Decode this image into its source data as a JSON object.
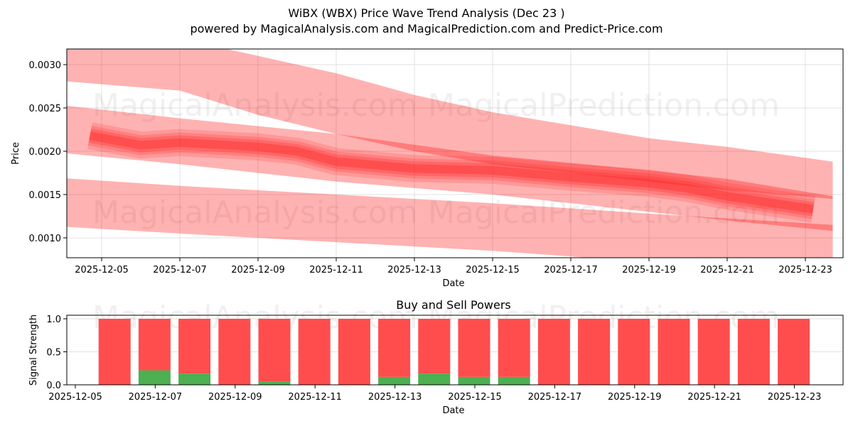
{
  "header": {
    "title": "WiBX (WBX) Price Wave Trend Analysis (Dec 23 )",
    "subtitle": "powered by MagicalAnalysis.com and MagicalPrediction.com and Predict-Price.com"
  },
  "watermarks": [
    "MagicalAnalysis.com",
    "MagicalPrediction.com"
  ],
  "colors": {
    "band_light": "#ff0000",
    "buy": "#4caf50",
    "sell": "#ff4d4d",
    "grid": "#e0e0e0"
  },
  "chart_data": [
    {
      "type": "area",
      "title": "WiBX (WBX) Price Wave Trend Analysis (Dec 23 )",
      "xlabel": "Date",
      "ylabel": "Price",
      "x_ticks": [
        "2025-12-05",
        "2025-12-07",
        "2025-12-09",
        "2025-12-11",
        "2025-12-13",
        "2025-12-15",
        "2025-12-17",
        "2025-12-19",
        "2025-12-21",
        "2025-12-23"
      ],
      "y_ticks": [
        "0.0010",
        "0.0015",
        "0.0020",
        "0.0025",
        "0.0030"
      ],
      "ylim": [
        0.00077,
        0.00318
      ],
      "grid": true,
      "series": [
        {
          "name": "upper-band",
          "x": [
            "2025-12-04",
            "2025-12-07",
            "2025-12-09",
            "2025-12-11",
            "2025-12-13",
            "2025-12-15",
            "2025-12-19",
            "2025-12-21",
            "2025-12-23.7"
          ],
          "upper": [
            0.0033,
            0.0033,
            0.0031,
            0.0029,
            0.00265,
            0.00245,
            0.00215,
            0.00205,
            0.00188
          ],
          "lower": [
            0.00281,
            0.0027,
            0.00242,
            0.0022,
            0.002,
            0.00185,
            0.00165,
            0.00155,
            0.00145
          ]
        },
        {
          "name": "middle-band",
          "x": [
            "2025-12-04",
            "2025-12-07",
            "2025-12-11",
            "2025-12-15",
            "2025-12-19",
            "2025-12-21",
            "2025-12-23.7"
          ],
          "upper": [
            0.00253,
            0.00238,
            0.0022,
            0.00195,
            0.00178,
            0.00168,
            0.00148
          ],
          "lower": [
            0.00198,
            0.00185,
            0.00165,
            0.0015,
            0.0013,
            0.0012,
            0.00108
          ]
        },
        {
          "name": "lower-band",
          "x": [
            "2025-12-04",
            "2025-12-07",
            "2025-12-11",
            "2025-12-15",
            "2025-12-19",
            "2025-12-23.7"
          ],
          "upper": [
            0.00169,
            0.0016,
            0.0015,
            0.0014,
            0.00128,
            0.00115
          ],
          "lower": [
            0.00113,
            0.00105,
            0.00095,
            0.00085,
            0.00072,
            0.0006
          ]
        },
        {
          "name": "price-wave-core",
          "x": [
            "2025-12-04.7",
            "2025-12-06",
            "2025-12-07",
            "2025-12-09",
            "2025-12-10",
            "2025-12-11",
            "2025-12-13",
            "2025-12-15",
            "2025-12-17",
            "2025-12-19",
            "2025-12-20",
            "2025-12-21",
            "2025-12-23.2"
          ],
          "values": [
            0.00218,
            0.00207,
            0.0021,
            0.00205,
            0.002,
            0.00188,
            0.0018,
            0.00178,
            0.0017,
            0.00163,
            0.00157,
            0.00148,
            0.00133
          ]
        }
      ]
    },
    {
      "type": "bar",
      "title": "Buy and Sell Powers",
      "xlabel": "Date",
      "ylabel": "Signal Strength",
      "x_ticks": [
        "2025-12-05",
        "2025-12-07",
        "2025-12-09",
        "2025-12-11",
        "2025-12-13",
        "2025-12-15",
        "2025-12-17",
        "2025-12-19",
        "2025-12-21",
        "2025-12-23"
      ],
      "y_ticks": [
        "0.0",
        "0.5",
        "1.0"
      ],
      "ylim": [
        0,
        1.05
      ],
      "categories": [
        "2025-12-06",
        "2025-12-07",
        "2025-12-08",
        "2025-12-09",
        "2025-12-10",
        "2025-12-11",
        "2025-12-12",
        "2025-12-13",
        "2025-12-14",
        "2025-12-15",
        "2025-12-16",
        "2025-12-17",
        "2025-12-18",
        "2025-12-19",
        "2025-12-20",
        "2025-12-21",
        "2025-12-22",
        "2025-12-23"
      ],
      "series": [
        {
          "name": "Buy",
          "color": "#4caf50",
          "values": [
            0,
            0.22,
            0.17,
            0,
            0.05,
            0,
            0,
            0.12,
            0.17,
            0.12,
            0.12,
            0,
            0,
            0,
            0,
            0,
            0,
            0
          ]
        },
        {
          "name": "Sell",
          "color": "#ff4d4d",
          "values": [
            1,
            0.78,
            0.83,
            1,
            0.95,
            1,
            1,
            0.88,
            0.83,
            0.88,
            0.88,
            1,
            1,
            1,
            1,
            1,
            1,
            1
          ]
        }
      ]
    }
  ]
}
